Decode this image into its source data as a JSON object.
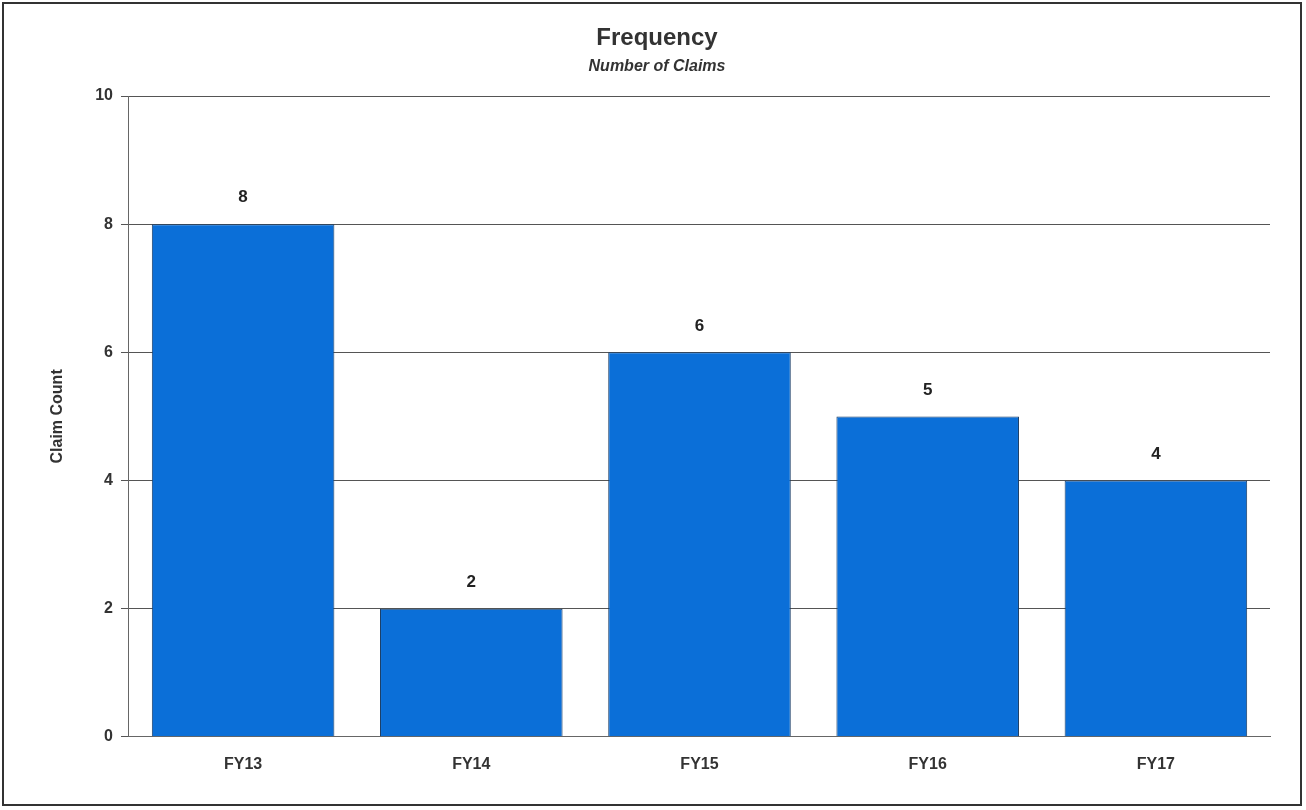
{
  "chart_data": {
    "type": "bar",
    "title": "Frequency",
    "subtitle": "Number of Claims",
    "ylabel": "Claim Count",
    "categories": [
      "FY13",
      "FY14",
      "FY15",
      "FY16",
      "FY17"
    ],
    "values": [
      8,
      2,
      6,
      5,
      4
    ],
    "color": "#0b6fd8",
    "ylim": [
      0,
      10
    ],
    "yticks": [
      0,
      2,
      4,
      6,
      8,
      10
    ],
    "grid": "y",
    "data_labels": true
  }
}
